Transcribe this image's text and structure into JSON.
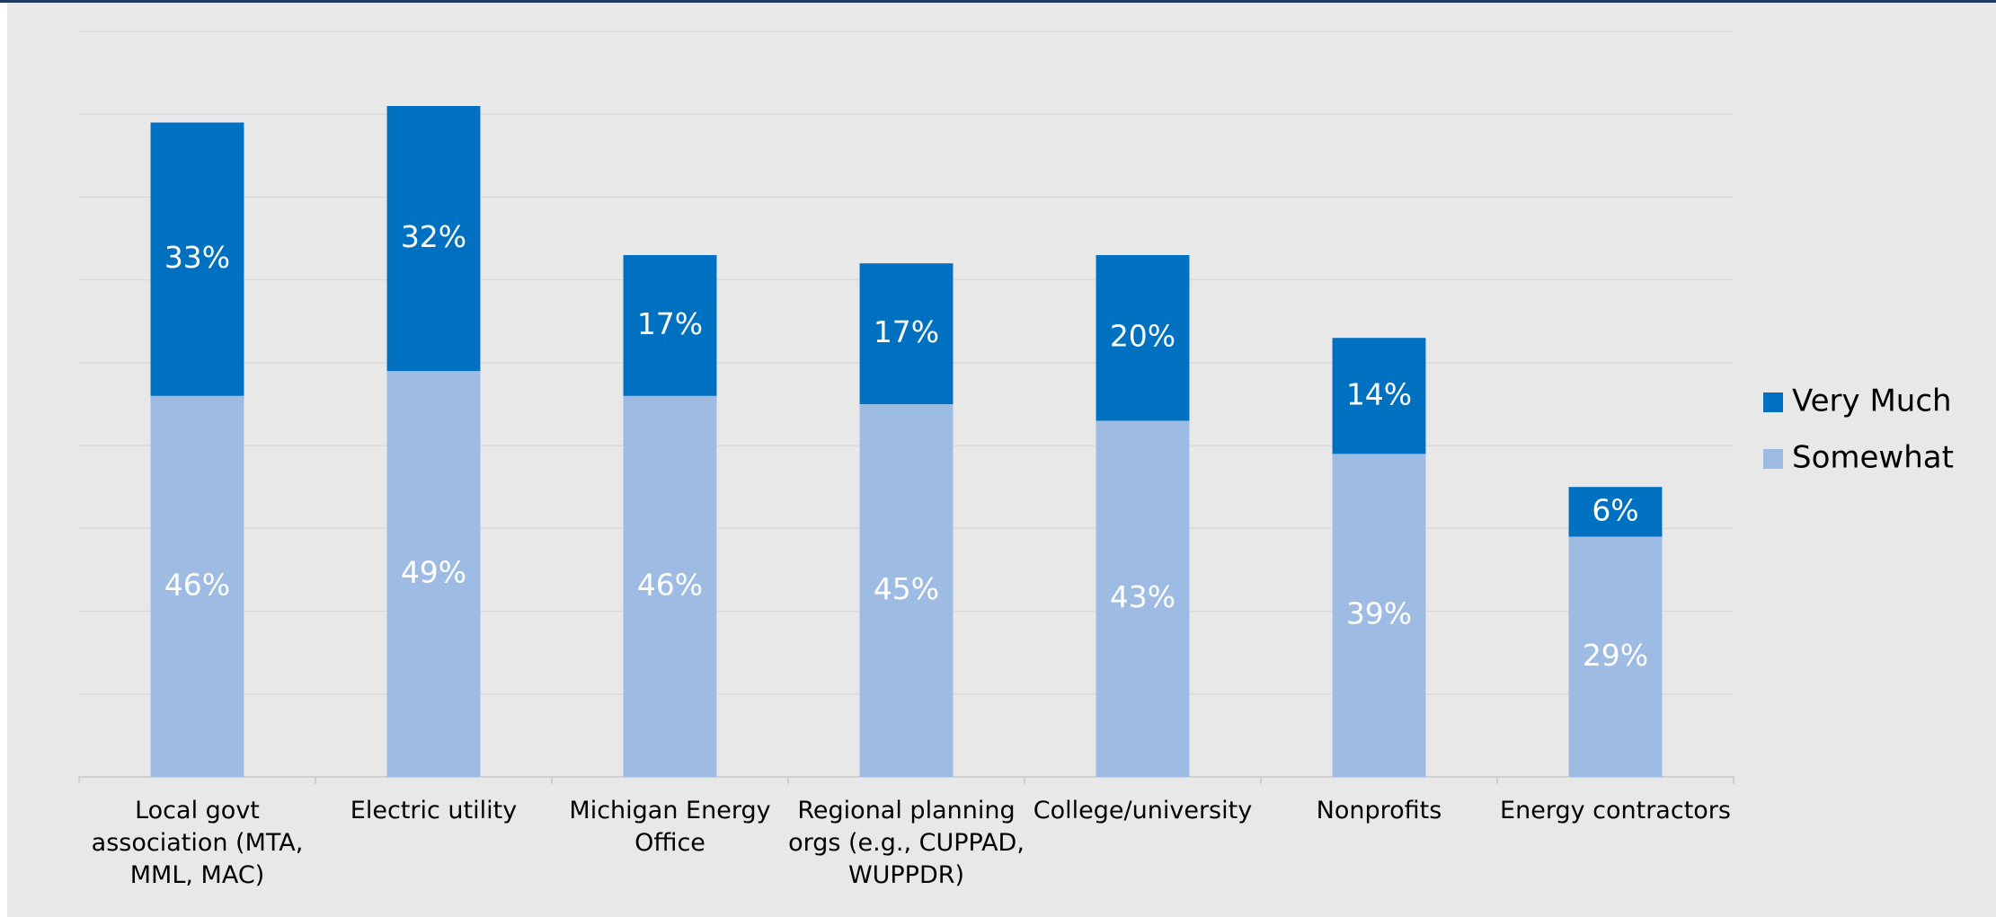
{
  "chart_data": {
    "type": "stacked_bar",
    "categories": [
      "Local govt association (MTA, MML, MAC)",
      "Electric utility",
      "Michigan Energy Office",
      "Regional planning orgs (e.g., CUPPAD, WUPPDR)",
      "College/university",
      "Nonprofits",
      "Energy contractors"
    ],
    "series": [
      {
        "name": "Somewhat",
        "color": "#9dbbe3",
        "values": [
          46,
          49,
          46,
          45,
          43,
          39,
          29
        ],
        "value_labels": [
          "46%",
          "49%",
          "46%",
          "45%",
          "43%",
          "39%",
          "29%"
        ]
      },
      {
        "name": "Very Much",
        "color": "#0070c0",
        "values": [
          33,
          32,
          17,
          17,
          20,
          14,
          6
        ],
        "value_labels": [
          "33%",
          "32%",
          "17%",
          "17%",
          "20%",
          "14%",
          "6%"
        ]
      }
    ],
    "ylim": [
      0,
      90
    ],
    "yticks": [
      0,
      10,
      20,
      30,
      40,
      50,
      60,
      70,
      80,
      90
    ],
    "grid": true,
    "legend": "right"
  }
}
